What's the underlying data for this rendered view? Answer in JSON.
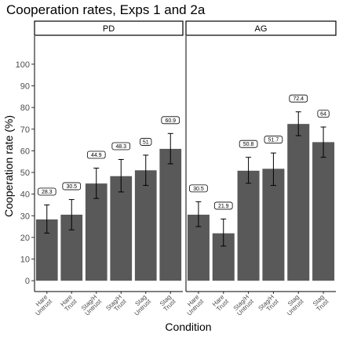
{
  "chart_data": {
    "type": "bar",
    "title": "Cooperation rates, Exps 1 and 2a",
    "xlabel": "Condition",
    "ylabel": "Cooperation rate (%)",
    "ylim": [
      -5,
      113
    ],
    "yticks": [
      0,
      10,
      20,
      30,
      40,
      50,
      60,
      70,
      80,
      90,
      100
    ],
    "grid": false,
    "bar_color": "#595959",
    "panels": [
      {
        "name": "PD",
        "bars": [
          {
            "category": [
              "Hare",
              "Untrust"
            ],
            "value": 28.3,
            "err_low": 22.0,
            "err_high": 35.0,
            "label": "28.3"
          },
          {
            "category": [
              "Hare",
              "Trust"
            ],
            "value": 30.5,
            "err_low": 23.5,
            "err_high": 37.5,
            "label": "30.5"
          },
          {
            "category": [
              "Stag/H",
              "Untrust"
            ],
            "value": 44.9,
            "err_low": 38.0,
            "err_high": 52.0,
            "label": "44.9"
          },
          {
            "category": [
              "Stag/H",
              "Trust"
            ],
            "value": 48.3,
            "err_low": 41.0,
            "err_high": 56.0,
            "label": "48.3"
          },
          {
            "category": [
              "Stag",
              "Untrust"
            ],
            "value": 51,
            "err_low": 44.0,
            "err_high": 58.0,
            "label": "51"
          },
          {
            "category": [
              "Stag",
              "Trust"
            ],
            "value": 60.9,
            "err_low": 54.0,
            "err_high": 68.0,
            "label": "60.9"
          }
        ]
      },
      {
        "name": "AG",
        "bars": [
          {
            "category": [
              "Hare",
              "Untrust"
            ],
            "value": 30.5,
            "err_low": 25.0,
            "err_high": 36.5,
            "label": "30.5"
          },
          {
            "category": [
              "Hare",
              "Trust"
            ],
            "value": 21.9,
            "err_low": 16.0,
            "err_high": 28.5,
            "label": "21.9"
          },
          {
            "category": [
              "Stag/H",
              "Untrust"
            ],
            "value": 50.8,
            "err_low": 45.0,
            "err_high": 57.0,
            "label": "50.8"
          },
          {
            "category": [
              "Stag/H",
              "Trust"
            ],
            "value": 51.7,
            "err_low": 44.0,
            "err_high": 59.0,
            "label": "51.7"
          },
          {
            "category": [
              "Stag",
              "Untrust"
            ],
            "value": 72.4,
            "err_low": 67.0,
            "err_high": 78.0,
            "label": "72.4"
          },
          {
            "category": [
              "Stag",
              "Trust"
            ],
            "value": 64,
            "err_low": 57.0,
            "err_high": 71.0,
            "label": "64"
          }
        ]
      }
    ]
  }
}
